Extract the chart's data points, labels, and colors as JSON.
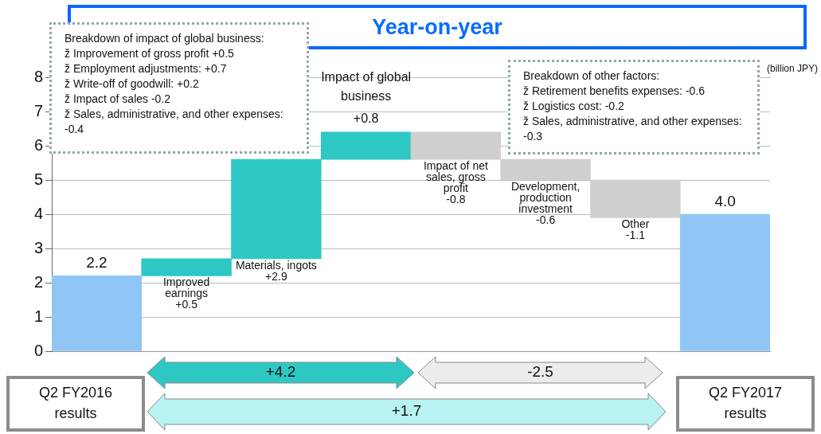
{
  "chart_data": {
    "type": "bar",
    "title": "Year-on-year",
    "ylabel": "(billion JPY)",
    "categories": [
      "Q2 FY2016 results",
      "Improved earnings",
      "Materials, ingots",
      "Impact of global business",
      "Impact of net sales, gross profit",
      "Development, production investment",
      "Other",
      "Q2 FY2017 results"
    ],
    "values": [
      2.2,
      0.5,
      2.9,
      0.8,
      -0.8,
      -0.6,
      -1.1,
      4.0
    ],
    "base": [
      0,
      2.2,
      2.7,
      5.6,
      6.4,
      5.6,
      5.0,
      0
    ],
    "colors": [
      "#8fc6f5",
      "#2ec8c4",
      "#2ec8c4",
      "#2ec8c4",
      "#cfcfcf",
      "#cfcfcf",
      "#cfcfcf",
      "#8fc6f5"
    ],
    "value_labels": [
      "2.2",
      "+0.5",
      "+2.9",
      "+0.8",
      "-0.8",
      "-0.6",
      "-1.1",
      "4.0"
    ],
    "ylim": [
      0,
      8
    ],
    "yticks": [
      0,
      1,
      2,
      3,
      4,
      5,
      6,
      7,
      8
    ],
    "grid": "y",
    "legend": false,
    "annotations": [
      "Breakdown of impact of global business:\nž Improvement of gross profit +0.5\nž Employment adjustments: +0.7\nž Write-off of goodwill: +0.2\nž Impact of sales -0.2\nž Sales, administrative, and other expenses: -0.4",
      "Breakdown of other factors:\nž Retirement benefits expenses: -0.6\nž Logistics cost: -0.2\nž Sales, administrative, and other expenses: -0.3",
      "+4.2",
      "-2.5",
      "+1.7"
    ]
  }
}
